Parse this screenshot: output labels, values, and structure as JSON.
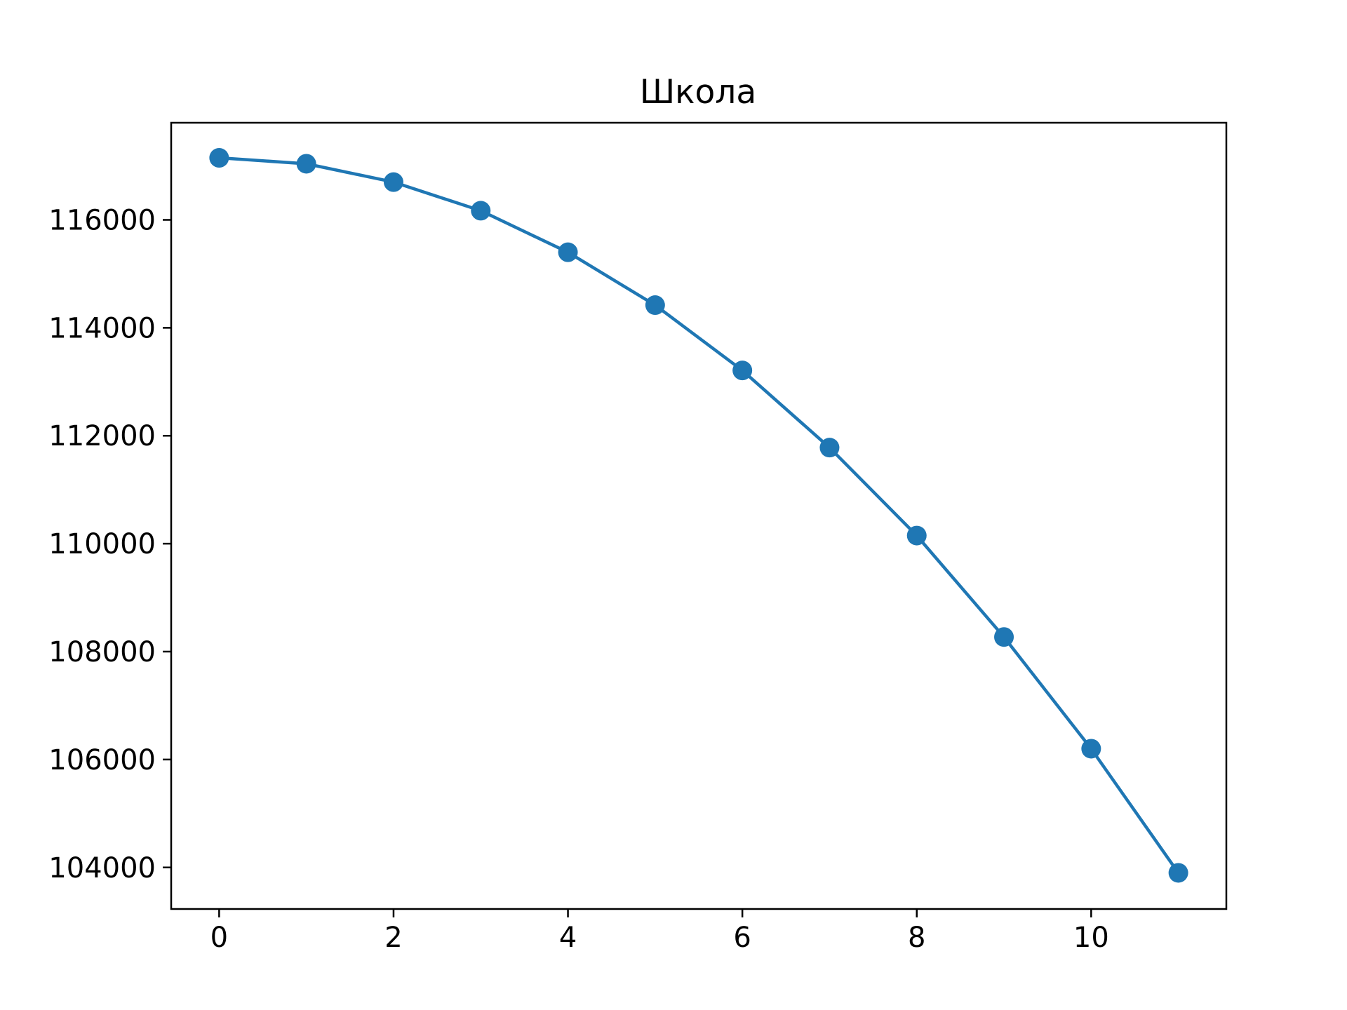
{
  "chart_data": {
    "type": "line",
    "title": "Школа",
    "xlabel": "",
    "ylabel": "",
    "x": [
      0,
      1,
      2,
      3,
      4,
      5,
      6,
      7,
      8,
      9,
      10,
      11
    ],
    "series": [
      {
        "values": [
          117150,
          117040,
          116700,
          116170,
          115400,
          114420,
          113210,
          111780,
          110150,
          108270,
          106200,
          103900
        ],
        "color": "#1f77b4",
        "marker": "circle"
      }
    ],
    "xlim": [
      -0.55,
      11.55
    ],
    "ylim": [
      103230,
      117800
    ],
    "xticks": [
      0,
      2,
      4,
      6,
      8,
      10
    ],
    "xtick_labels": [
      "0",
      "2",
      "4",
      "6",
      "8",
      "10"
    ],
    "yticks": [
      104000,
      106000,
      108000,
      110000,
      112000,
      114000,
      116000
    ],
    "ytick_labels": [
      "104000",
      "106000",
      "108000",
      "110000",
      "112000",
      "114000",
      "116000"
    ],
    "grid": false,
    "legend": "none"
  }
}
